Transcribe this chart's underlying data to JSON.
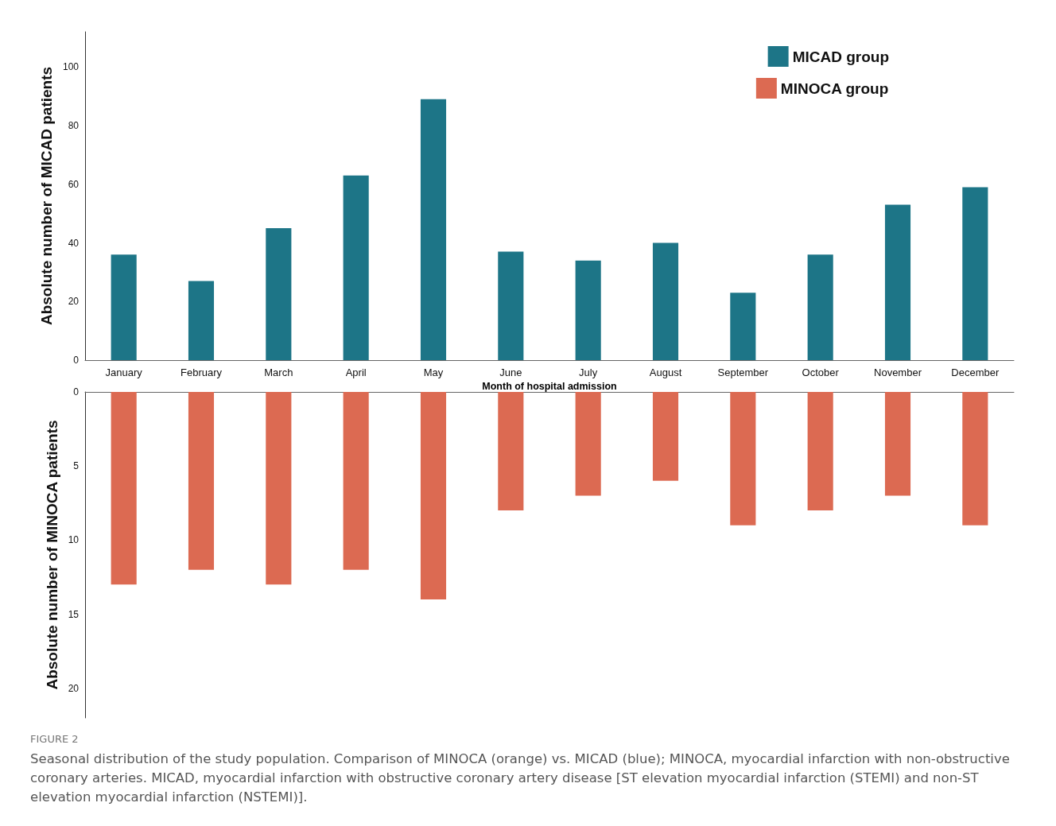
{
  "chart_data": [
    {
      "type": "bar",
      "ylabel": "Absolute number of MICAD patients",
      "xlabel": "Month of hospital admission",
      "categories": [
        "January",
        "February",
        "March",
        "April",
        "May",
        "June",
        "July",
        "August",
        "September",
        "October",
        "November",
        "December"
      ],
      "series": [
        {
          "name": "MICAD group",
          "color": "#1d7587",
          "values": [
            36,
            27,
            45,
            63,
            89,
            37,
            34,
            40,
            23,
            36,
            53,
            59
          ]
        }
      ],
      "ylim": [
        0,
        112
      ],
      "yticks": [
        0,
        20,
        40,
        60,
        80,
        100
      ],
      "grid": false,
      "legend": "top right"
    },
    {
      "type": "bar",
      "ylabel": "Absolute number of MINOCA patients",
      "legend": "top right",
      "categories": [
        null,
        null,
        null,
        null,
        null,
        null,
        null,
        null,
        null,
        null,
        null,
        null
      ],
      "series": [
        {
          "name": "MINOCA group",
          "color": "#dc6a52",
          "values": [
            13,
            12,
            13,
            12,
            14,
            8,
            7,
            6,
            9,
            8,
            7,
            9
          ]
        }
      ],
      "ylim": [
        22,
        0
      ],
      "yticks": [
        0,
        5,
        10,
        15,
        20
      ],
      "grid": false,
      "tick_labels": "y",
      "annotations": [
        "FIGURE 2",
        "Seasonal distribution of the study population. Comparison of MINOCA (orange) vs. MICAD (blue); MINOCA, myocardial infarction with non-obstructive coronary arteries. MICAD, myocardial infarction with obstructive coronary artery disease [ST elevation myocardial infarction (STEMI) and non-ST elevation myocardial infarction (NSTEMI)]."
      ]
    }
  ]
}
